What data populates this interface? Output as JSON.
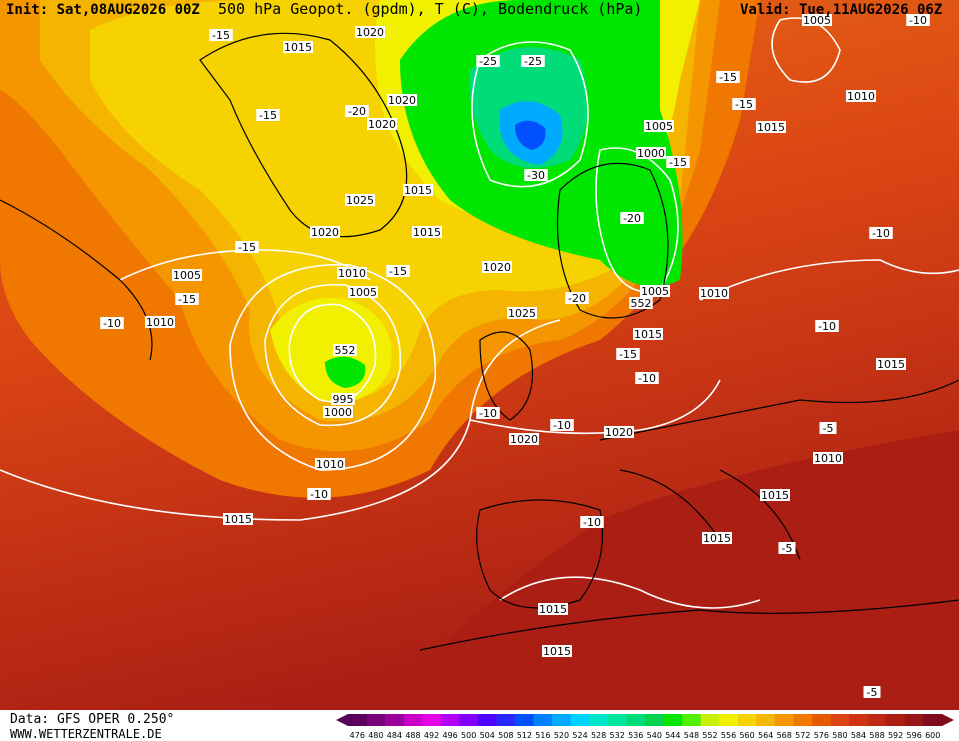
{
  "header": {
    "init": "Init: Sat,08AUG2026 00Z",
    "title": "500 hPa Geopot. (gpdm), T (C), Bodendruck (hPa)",
    "valid": "Valid: Tue,11AUG2026 06Z"
  },
  "footer": {
    "source": "Data: GFS OPER 0.250°",
    "site": "WWW.WETTERZENTRALE.DE"
  },
  "colorbar": {
    "labels": [
      476,
      480,
      484,
      488,
      492,
      496,
      500,
      504,
      508,
      512,
      516,
      520,
      524,
      528,
      532,
      536,
      540,
      544,
      548,
      552,
      556,
      560,
      564,
      568,
      572,
      576,
      580,
      584,
      588,
      592,
      596,
      600
    ],
    "colors": [
      "#5a005a",
      "#780078",
      "#9b009b",
      "#c800c8",
      "#e600e6",
      "#b400ff",
      "#8200ff",
      "#5000ff",
      "#2828ff",
      "#0050ff",
      "#0082ff",
      "#00aaff",
      "#00d2ff",
      "#00e6c8",
      "#00e6a0",
      "#00dc78",
      "#00d250",
      "#00e600",
      "#50f000",
      "#c8f000",
      "#f0f000",
      "#f5d200",
      "#f5b400",
      "#f59600",
      "#f07800",
      "#e65a00",
      "#dc4614",
      "#d23214",
      "#be2814",
      "#aa1e14",
      "#961414",
      "#800a1e"
    ]
  },
  "isobar_labels": [
    "1015",
    "1020",
    "1020",
    "1020",
    "1015",
    "1025",
    "1020",
    "1015",
    "1010",
    "1005",
    "1005",
    "1010",
    "552",
    "995",
    "1000",
    "1010",
    "1015",
    "1020",
    "1025",
    "1005",
    "1000",
    "1005",
    "1010",
    "1015",
    "552",
    "1020",
    "1020",
    "1010",
    "1015",
    "1015",
    "1010",
    "1015",
    "1015",
    "1015",
    "1015",
    "1005"
  ],
  "temperature_labels": [
    "-15",
    "-15",
    "-20",
    "-15",
    "-15",
    "-10",
    "-15",
    "-25",
    "-25",
    "-30",
    "-20",
    "-15",
    "-15",
    "-15",
    "-20",
    "-15",
    "-10",
    "-10",
    "-10",
    "-10",
    "-10",
    "-10",
    "-10",
    "-5",
    "-5",
    "-5",
    "-10"
  ]
}
